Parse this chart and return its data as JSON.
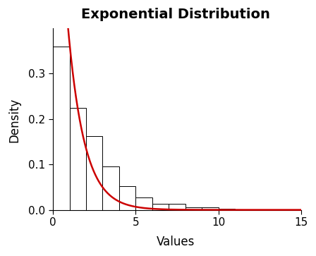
{
  "title": "Exponential Distribution",
  "xlabel": "Values",
  "ylabel": "Density",
  "xlim": [
    -0.2,
    15
  ],
  "ylim": [
    -0.005,
    0.4
  ],
  "lambda": 1.0,
  "bar_edges": [
    0,
    1,
    2,
    3,
    4,
    5,
    6,
    7,
    8,
    9,
    10,
    11
  ],
  "bar_heights": [
    0.36,
    0.225,
    0.163,
    0.095,
    0.052,
    0.028,
    0.013,
    0.013,
    0.005,
    0.005,
    0.002
  ],
  "bar_facecolor": "#ffffff",
  "bar_edgecolor": "#000000",
  "curve_color": "#cc0000",
  "curve_linewidth": 1.8,
  "background_color": "#ffffff",
  "title_fontsize": 14,
  "title_fontweight": "bold",
  "label_fontsize": 12,
  "yticks": [
    0.0,
    0.1,
    0.2,
    0.3
  ],
  "ytick_labels": [
    "0.0",
    "0.1",
    "0.2",
    "0.3"
  ],
  "xticks": [
    0,
    5,
    10,
    15
  ],
  "xtick_labels": [
    "0",
    "5",
    "10",
    "15"
  ],
  "fig_width": 4.48,
  "fig_height": 3.63,
  "dpi": 100
}
